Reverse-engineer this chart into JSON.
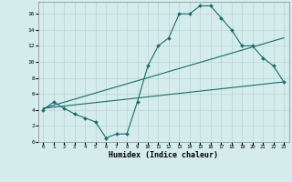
{
  "xlabel": "Humidex (Indice chaleur)",
  "bg_color": "#d5ecec",
  "grid_color": "#b8d4d4",
  "line_color": "#1a6b6b",
  "xlim": [
    -0.5,
    23.5
  ],
  "ylim": [
    0,
    17.5
  ],
  "xticks": [
    0,
    1,
    2,
    3,
    4,
    5,
    6,
    7,
    8,
    9,
    10,
    11,
    12,
    13,
    14,
    15,
    16,
    17,
    18,
    19,
    20,
    21,
    22,
    23
  ],
  "yticks": [
    0,
    2,
    4,
    6,
    8,
    10,
    12,
    14,
    16
  ],
  "curve_x": [
    0,
    1,
    2,
    3,
    4,
    5,
    6,
    7,
    8,
    9,
    10,
    11,
    12,
    13,
    14,
    15,
    16,
    17,
    18,
    19,
    20,
    21,
    22,
    23
  ],
  "curve_y": [
    4.0,
    5.0,
    4.2,
    3.5,
    3.0,
    2.5,
    0.5,
    1.0,
    1.0,
    5.0,
    9.5,
    12.0,
    13.0,
    16.0,
    16.0,
    17.0,
    17.0,
    15.5,
    14.0,
    12.0,
    12.0,
    10.5,
    9.5,
    7.5
  ],
  "line1_x": [
    0,
    23
  ],
  "line1_y": [
    4.2,
    13.0
  ],
  "line2_x": [
    0,
    23
  ],
  "line2_y": [
    4.2,
    7.5
  ]
}
